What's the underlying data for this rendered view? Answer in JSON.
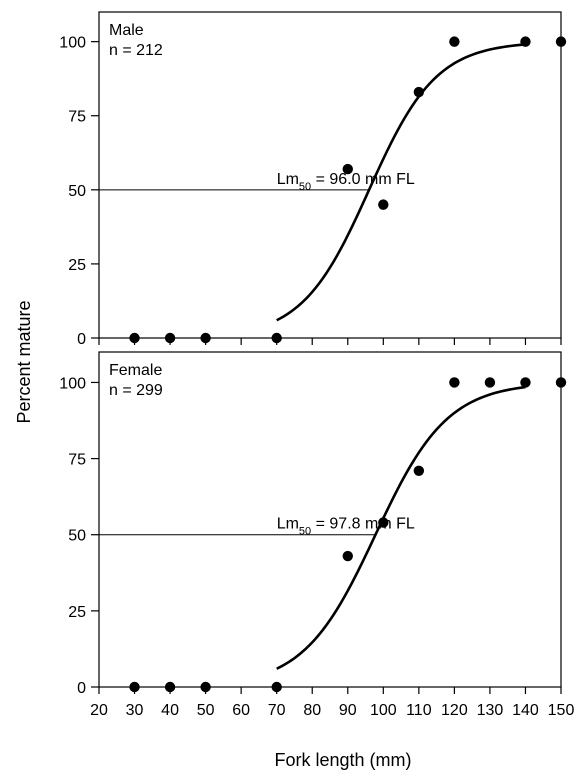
{
  "chart_data": {
    "type": "scatter",
    "xlabel": "Fork length (mm)",
    "ylabel": "Percent mature",
    "xlim": [
      20,
      150
    ],
    "ylim": [
      0,
      110
    ],
    "xticks": [
      20,
      30,
      40,
      50,
      60,
      70,
      80,
      90,
      100,
      110,
      120,
      130,
      140,
      150
    ],
    "yticks": [
      0,
      25,
      50,
      75,
      100
    ],
    "panels": [
      {
        "id": "male",
        "label": "Male",
        "n_label": "n = 212",
        "lm50_prefix": "Lm",
        "lm50_sub": "50",
        "lm50_suffix": " = 96.0 mm FL",
        "lm50": 96.0,
        "curve_x_range": [
          70,
          140
        ],
        "points": [
          {
            "x": 30,
            "y": 0
          },
          {
            "x": 40,
            "y": 0
          },
          {
            "x": 50,
            "y": 0
          },
          {
            "x": 70,
            "y": 0
          },
          {
            "x": 90,
            "y": 57
          },
          {
            "x": 100,
            "y": 45
          },
          {
            "x": 110,
            "y": 83
          },
          {
            "x": 120,
            "y": 100
          },
          {
            "x": 140,
            "y": 100
          },
          {
            "x": 150,
            "y": 100
          }
        ]
      },
      {
        "id": "female",
        "label": "Female",
        "n_label": "n = 299",
        "lm50_prefix": "Lm",
        "lm50_sub": "50",
        "lm50_suffix": " = 97.8 mm FL",
        "lm50": 97.8,
        "curve_x_range": [
          70,
          140
        ],
        "points": [
          {
            "x": 30,
            "y": 0
          },
          {
            "x": 40,
            "y": 0
          },
          {
            "x": 50,
            "y": 0
          },
          {
            "x": 70,
            "y": 0
          },
          {
            "x": 90,
            "y": 43
          },
          {
            "x": 100,
            "y": 54
          },
          {
            "x": 110,
            "y": 71
          },
          {
            "x": 120,
            "y": 100
          },
          {
            "x": 130,
            "y": 100
          },
          {
            "x": 140,
            "y": 100
          },
          {
            "x": 150,
            "y": 100
          }
        ]
      }
    ]
  }
}
